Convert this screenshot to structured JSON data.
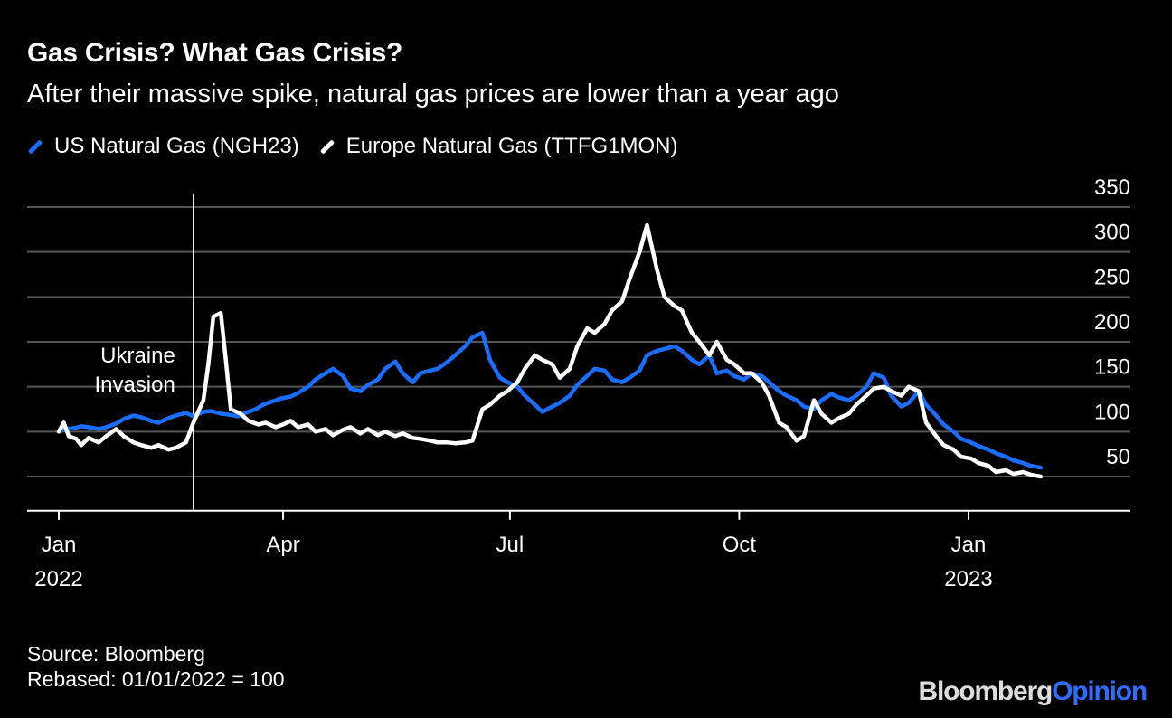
{
  "title": "Gas Crisis? What Gas Crisis?",
  "subtitle": "After their massive spike, natural gas prices are lower than a year ago",
  "source": "Source: Bloomberg",
  "note": "Rebased: 01/01/2022 = 100",
  "logo": {
    "part1": "Bloomberg",
    "part2": "Opinion"
  },
  "colors": {
    "us": "#1a6eff",
    "europe": "#ffffff",
    "background": "#000000",
    "grid": "#555555"
  },
  "chart_data": {
    "type": "line",
    "title": "Gas Crisis? What Gas Crisis?",
    "subtitle": "After their massive spike, natural gas prices are lower than a year ago",
    "ylim": [
      20,
      350
    ],
    "yticks": [
      50,
      100,
      150,
      200,
      250,
      300,
      350
    ],
    "xlim": [
      "2022-01-01",
      "2023-02-15"
    ],
    "xticks": [
      {
        "date": "2022-01-01",
        "line1": "Jan",
        "line2": "2022"
      },
      {
        "date": "2022-04-01",
        "line1": "Apr",
        "line2": ""
      },
      {
        "date": "2022-07-01",
        "line1": "Jul",
        "line2": ""
      },
      {
        "date": "2022-10-01",
        "line1": "Oct",
        "line2": ""
      },
      {
        "date": "2023-01-01",
        "line1": "Jan",
        "line2": "2023"
      }
    ],
    "grid": true,
    "legend": "top-left",
    "annotations": [
      {
        "date": "2022-02-24",
        "label_line1": "Ukraine",
        "label_line2": "Invasion"
      }
    ],
    "series": [
      {
        "name": "US Natural Gas (NGH23)",
        "color": "#1a6eff",
        "points": [
          [
            "2022-01-01",
            100
          ],
          [
            "2022-01-04",
            103
          ],
          [
            "2022-01-07",
            104
          ],
          [
            "2022-01-10",
            106
          ],
          [
            "2022-01-13",
            105
          ],
          [
            "2022-01-17",
            103
          ],
          [
            "2022-01-20",
            105
          ],
          [
            "2022-01-24",
            109
          ],
          [
            "2022-01-27",
            114
          ],
          [
            "2022-01-31",
            118
          ],
          [
            "2022-02-03",
            116
          ],
          [
            "2022-02-07",
            112
          ],
          [
            "2022-02-10",
            110
          ],
          [
            "2022-02-14",
            115
          ],
          [
            "2022-02-17",
            118
          ],
          [
            "2022-02-21",
            121
          ],
          [
            "2022-02-24",
            117
          ],
          [
            "2022-02-28",
            122
          ],
          [
            "2022-03-03",
            123
          ],
          [
            "2022-03-07",
            120
          ],
          [
            "2022-03-10",
            119
          ],
          [
            "2022-03-14",
            117
          ],
          [
            "2022-03-17",
            121
          ],
          [
            "2022-03-21",
            125
          ],
          [
            "2022-03-24",
            130
          ],
          [
            "2022-03-28",
            134
          ],
          [
            "2022-03-31",
            137
          ],
          [
            "2022-04-04",
            139
          ],
          [
            "2022-04-07",
            143
          ],
          [
            "2022-04-11",
            150
          ],
          [
            "2022-04-14",
            158
          ],
          [
            "2022-04-18",
            165
          ],
          [
            "2022-04-21",
            170
          ],
          [
            "2022-04-25",
            162
          ],
          [
            "2022-04-28",
            148
          ],
          [
            "2022-05-02",
            145
          ],
          [
            "2022-05-05",
            152
          ],
          [
            "2022-05-09",
            158
          ],
          [
            "2022-05-12",
            170
          ],
          [
            "2022-05-16",
            178
          ],
          [
            "2022-05-19",
            165
          ],
          [
            "2022-05-23",
            155
          ],
          [
            "2022-05-26",
            165
          ],
          [
            "2022-05-30",
            168
          ],
          [
            "2022-06-02",
            170
          ],
          [
            "2022-06-06",
            178
          ],
          [
            "2022-06-09",
            185
          ],
          [
            "2022-06-13",
            195
          ],
          [
            "2022-06-16",
            205
          ],
          [
            "2022-06-20",
            210
          ],
          [
            "2022-06-23",
            180
          ],
          [
            "2022-06-27",
            160
          ],
          [
            "2022-06-30",
            155
          ],
          [
            "2022-07-04",
            150
          ],
          [
            "2022-07-07",
            140
          ],
          [
            "2022-07-11",
            130
          ],
          [
            "2022-07-14",
            122
          ],
          [
            "2022-07-18",
            128
          ],
          [
            "2022-07-21",
            132
          ],
          [
            "2022-07-25",
            140
          ],
          [
            "2022-07-28",
            152
          ],
          [
            "2022-08-01",
            162
          ],
          [
            "2022-08-04",
            170
          ],
          [
            "2022-08-08",
            168
          ],
          [
            "2022-08-11",
            158
          ],
          [
            "2022-08-15",
            155
          ],
          [
            "2022-08-18",
            160
          ],
          [
            "2022-08-22",
            168
          ],
          [
            "2022-08-25",
            185
          ],
          [
            "2022-08-29",
            190
          ],
          [
            "2022-09-01",
            192
          ],
          [
            "2022-09-05",
            195
          ],
          [
            "2022-09-08",
            190
          ],
          [
            "2022-09-12",
            180
          ],
          [
            "2022-09-15",
            175
          ],
          [
            "2022-09-19",
            185
          ],
          [
            "2022-09-22",
            165
          ],
          [
            "2022-09-26",
            168
          ],
          [
            "2022-09-29",
            162
          ],
          [
            "2022-10-03",
            158
          ],
          [
            "2022-10-06",
            165
          ],
          [
            "2022-10-10",
            162
          ],
          [
            "2022-10-13",
            155
          ],
          [
            "2022-10-17",
            145
          ],
          [
            "2022-10-20",
            140
          ],
          [
            "2022-10-24",
            135
          ],
          [
            "2022-10-27",
            128
          ],
          [
            "2022-10-31",
            125
          ],
          [
            "2022-11-03",
            135
          ],
          [
            "2022-11-07",
            142
          ],
          [
            "2022-11-10",
            138
          ],
          [
            "2022-11-14",
            135
          ],
          [
            "2022-11-17",
            140
          ],
          [
            "2022-11-21",
            150
          ],
          [
            "2022-11-24",
            165
          ],
          [
            "2022-11-28",
            160
          ],
          [
            "2022-12-01",
            140
          ],
          [
            "2022-12-05",
            128
          ],
          [
            "2022-12-08",
            132
          ],
          [
            "2022-12-12",
            145
          ],
          [
            "2022-12-15",
            130
          ],
          [
            "2022-12-19",
            118
          ],
          [
            "2022-12-22",
            108
          ],
          [
            "2022-12-26",
            100
          ],
          [
            "2022-12-29",
            92
          ],
          [
            "2023-01-02",
            88
          ],
          [
            "2023-01-05",
            84
          ],
          [
            "2023-01-09",
            80
          ],
          [
            "2023-01-12",
            76
          ],
          [
            "2023-01-16",
            72
          ],
          [
            "2023-01-19",
            68
          ],
          [
            "2023-01-23",
            65
          ],
          [
            "2023-01-26",
            62
          ],
          [
            "2023-01-30",
            60
          ]
        ]
      },
      {
        "name": "Europe Natural Gas (TTFG1MON)",
        "color": "#ffffff",
        "points": [
          [
            "2022-01-01",
            100
          ],
          [
            "2022-01-03",
            110
          ],
          [
            "2022-01-05",
            95
          ],
          [
            "2022-01-08",
            92
          ],
          [
            "2022-01-10",
            85
          ],
          [
            "2022-01-13",
            93
          ],
          [
            "2022-01-17",
            88
          ],
          [
            "2022-01-20",
            95
          ],
          [
            "2022-01-24",
            103
          ],
          [
            "2022-01-27",
            95
          ],
          [
            "2022-01-31",
            88
          ],
          [
            "2022-02-03",
            85
          ],
          [
            "2022-02-07",
            82
          ],
          [
            "2022-02-10",
            85
          ],
          [
            "2022-02-14",
            80
          ],
          [
            "2022-02-17",
            82
          ],
          [
            "2022-02-21",
            88
          ],
          [
            "2022-02-24",
            110
          ],
          [
            "2022-02-28",
            135
          ],
          [
            "2022-03-02",
            175
          ],
          [
            "2022-03-04",
            228
          ],
          [
            "2022-03-07",
            232
          ],
          [
            "2022-03-09",
            180
          ],
          [
            "2022-03-11",
            125
          ],
          [
            "2022-03-15",
            120
          ],
          [
            "2022-03-18",
            112
          ],
          [
            "2022-03-22",
            108
          ],
          [
            "2022-03-25",
            110
          ],
          [
            "2022-03-29",
            105
          ],
          [
            "2022-04-01",
            108
          ],
          [
            "2022-04-04",
            112
          ],
          [
            "2022-04-07",
            105
          ],
          [
            "2022-04-11",
            108
          ],
          [
            "2022-04-14",
            100
          ],
          [
            "2022-04-18",
            103
          ],
          [
            "2022-04-21",
            96
          ],
          [
            "2022-04-25",
            102
          ],
          [
            "2022-04-28",
            105
          ],
          [
            "2022-05-02",
            98
          ],
          [
            "2022-05-05",
            103
          ],
          [
            "2022-05-09",
            96
          ],
          [
            "2022-05-12",
            100
          ],
          [
            "2022-05-16",
            95
          ],
          [
            "2022-05-19",
            98
          ],
          [
            "2022-05-23",
            93
          ],
          [
            "2022-05-26",
            92
          ],
          [
            "2022-05-30",
            90
          ],
          [
            "2022-06-02",
            88
          ],
          [
            "2022-06-06",
            88
          ],
          [
            "2022-06-09",
            87
          ],
          [
            "2022-06-13",
            88
          ],
          [
            "2022-06-16",
            90
          ],
          [
            "2022-06-20",
            125
          ],
          [
            "2022-06-23",
            130
          ],
          [
            "2022-06-27",
            140
          ],
          [
            "2022-06-30",
            145
          ],
          [
            "2022-07-04",
            155
          ],
          [
            "2022-07-07",
            170
          ],
          [
            "2022-07-11",
            185
          ],
          [
            "2022-07-14",
            180
          ],
          [
            "2022-07-18",
            175
          ],
          [
            "2022-07-21",
            160
          ],
          [
            "2022-07-25",
            170
          ],
          [
            "2022-07-28",
            195
          ],
          [
            "2022-08-01",
            215
          ],
          [
            "2022-08-04",
            210
          ],
          [
            "2022-08-08",
            220
          ],
          [
            "2022-08-11",
            235
          ],
          [
            "2022-08-15",
            245
          ],
          [
            "2022-08-18",
            270
          ],
          [
            "2022-08-22",
            300
          ],
          [
            "2022-08-25",
            330
          ],
          [
            "2022-08-29",
            280
          ],
          [
            "2022-09-01",
            250
          ],
          [
            "2022-09-05",
            240
          ],
          [
            "2022-09-08",
            235
          ],
          [
            "2022-09-12",
            210
          ],
          [
            "2022-09-15",
            200
          ],
          [
            "2022-09-19",
            185
          ],
          [
            "2022-09-22",
            200
          ],
          [
            "2022-09-26",
            180
          ],
          [
            "2022-09-29",
            175
          ],
          [
            "2022-10-03",
            165
          ],
          [
            "2022-10-06",
            165
          ],
          [
            "2022-10-10",
            155
          ],
          [
            "2022-10-13",
            140
          ],
          [
            "2022-10-17",
            110
          ],
          [
            "2022-10-20",
            105
          ],
          [
            "2022-10-24",
            90
          ],
          [
            "2022-10-27",
            95
          ],
          [
            "2022-10-31",
            135
          ],
          [
            "2022-11-03",
            120
          ],
          [
            "2022-11-07",
            110
          ],
          [
            "2022-11-10",
            115
          ],
          [
            "2022-11-14",
            120
          ],
          [
            "2022-11-17",
            130
          ],
          [
            "2022-11-21",
            140
          ],
          [
            "2022-11-24",
            148
          ],
          [
            "2022-11-28",
            150
          ],
          [
            "2022-12-01",
            145
          ],
          [
            "2022-12-05",
            140
          ],
          [
            "2022-12-08",
            150
          ],
          [
            "2022-12-12",
            145
          ],
          [
            "2022-12-15",
            110
          ],
          [
            "2022-12-19",
            95
          ],
          [
            "2022-12-22",
            85
          ],
          [
            "2022-12-26",
            80
          ],
          [
            "2022-12-29",
            72
          ],
          [
            "2023-01-02",
            70
          ],
          [
            "2023-01-05",
            65
          ],
          [
            "2023-01-09",
            62
          ],
          [
            "2023-01-12",
            55
          ],
          [
            "2023-01-16",
            57
          ],
          [
            "2023-01-19",
            53
          ],
          [
            "2023-01-23",
            55
          ],
          [
            "2023-01-26",
            52
          ],
          [
            "2023-01-30",
            50
          ]
        ]
      }
    ]
  }
}
